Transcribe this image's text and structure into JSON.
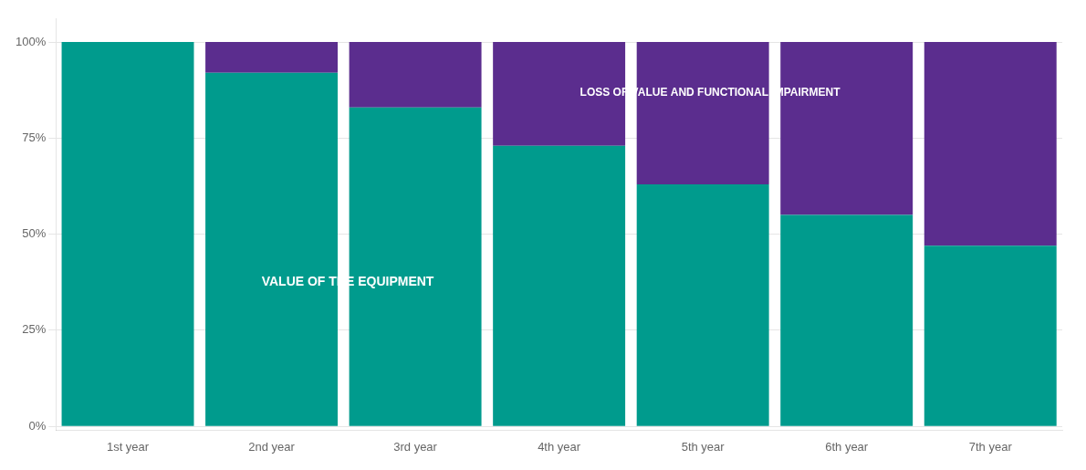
{
  "chart_data": {
    "type": "bar",
    "stacked": true,
    "grid": true,
    "categories": [
      "1st year",
      "2nd year",
      "3rd year",
      "4th year",
      "5th year",
      "6th year",
      "7th year"
    ],
    "series": [
      {
        "name": "VALUE OF THE EQUIPMENT",
        "color": "#009B8D",
        "values": [
          1.0,
          0.92,
          0.83,
          0.73,
          0.63,
          0.55,
          0.47
        ]
      },
      {
        "name": "LOSS OF VALUE AND FUNCTIONAL IMPAIRMENT",
        "color": "#5B2D8E",
        "values": [
          0,
          0.08,
          0.17,
          0.27,
          0.37,
          0.45,
          0.53
        ]
      }
    ],
    "ylim": [
      -0.01,
      1.06
    ],
    "yticks": [
      {
        "value": 0,
        "label": "0%"
      },
      {
        "value": 0.25,
        "label": "25%"
      },
      {
        "value": 0.5,
        "label": "50%"
      },
      {
        "value": 0.75,
        "label": "75%"
      },
      {
        "value": 1,
        "label": "100%"
      }
    ]
  }
}
